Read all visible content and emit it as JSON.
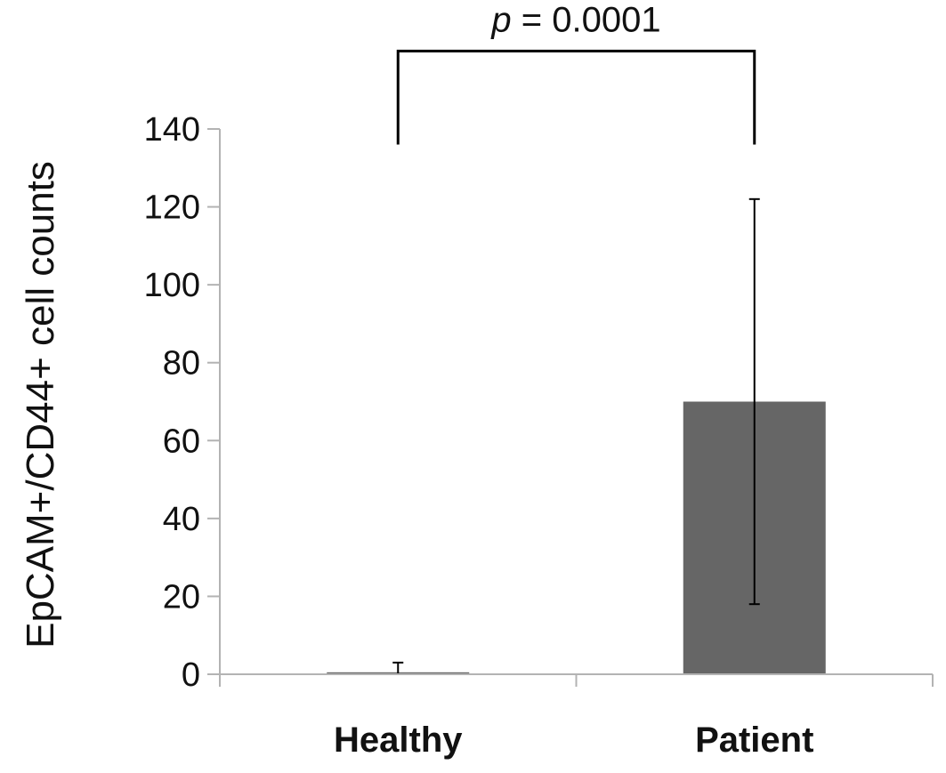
{
  "chart_data": {
    "type": "bar",
    "categories": [
      "Healthy",
      "Patient"
    ],
    "values": [
      0.5,
      70
    ],
    "error_upper": [
      3,
      122
    ],
    "error_lower": [
      0,
      18
    ],
    "ylabel": "EpCAM+/CD44+ cell counts",
    "xlabel": "",
    "ylim": [
      0,
      140
    ],
    "yticks": [
      "0",
      "20",
      "40",
      "60",
      "80",
      "100",
      "120",
      "140"
    ],
    "grid": false,
    "bar_color": "#666666",
    "significance": {
      "p_symbol": "p",
      "p_rest": " = 0.0001",
      "between": [
        "Healthy",
        "Patient"
      ],
      "bracket_value": 160,
      "bracket_bottom_value": 136
    }
  }
}
